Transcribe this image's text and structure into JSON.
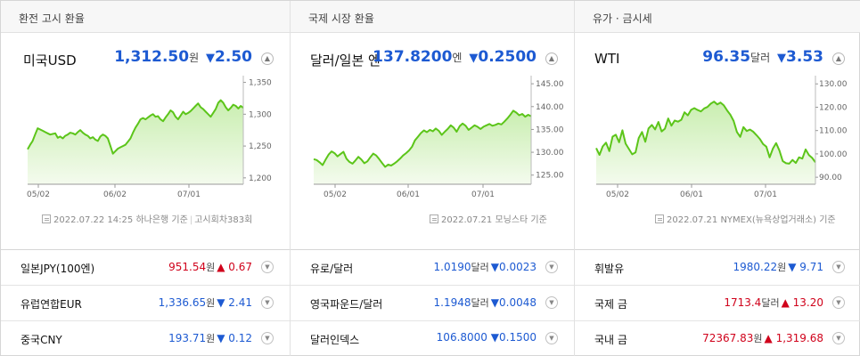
{
  "columns": [
    {
      "header": "환전 고시 환율",
      "main": {
        "name": "미국USD",
        "price": "1,312.50",
        "unit": "원",
        "direction": "down",
        "arrow": "▼",
        "change": "2.50",
        "expand_glyph": "▲"
      },
      "source": {
        "date": "2022.07.22 14:25",
        "provider": "하나은행 기준",
        "extra": "고시회차383회"
      },
      "rows": [
        {
          "name": "일본JPY(100엔)",
          "value": "951.54",
          "unit": "원",
          "direction": "up",
          "arrow": "▲",
          "change": "0.67"
        },
        {
          "name": "유럽연합EUR",
          "value": "1,336.65",
          "unit": "원",
          "direction": "down",
          "arrow": "▼",
          "change": "2.41"
        },
        {
          "name": "중국CNY",
          "value": "193.71",
          "unit": "원",
          "direction": "down",
          "arrow": "▼",
          "change": "0.12"
        }
      ]
    },
    {
      "header": "국제 시장 환율",
      "main": {
        "name": "달러/일본 엔",
        "price": "137.8200",
        "unit": "엔",
        "direction": "down",
        "arrow": "▼",
        "change": "0.2500",
        "expand_glyph": "▲"
      },
      "source": {
        "date": "2022.07.21",
        "provider": "모닝스타 기준",
        "extra": ""
      },
      "rows": [
        {
          "name": "유로/달러",
          "value": "1.0190",
          "unit": "달러",
          "direction": "down",
          "arrow": "▼",
          "change": "0.0023"
        },
        {
          "name": "영국파운드/달러",
          "value": "1.1948",
          "unit": "달러",
          "direction": "down",
          "arrow": "▼",
          "change": "0.0048"
        },
        {
          "name": "달러인덱스",
          "value": "106.8000",
          "unit": "",
          "direction": "down",
          "arrow": "▼",
          "change": "0.1500"
        }
      ]
    },
    {
      "header": "유가 · 금시세",
      "main": {
        "name": "WTI",
        "price": "96.35",
        "unit": "달러",
        "direction": "down",
        "arrow": "▼",
        "change": "3.53",
        "expand_glyph": "▲"
      },
      "source": {
        "date": "2022.07.21",
        "provider": "NYMEX(뉴욕상업거래소) 기준",
        "extra": ""
      },
      "rows": [
        {
          "name": "휘발유",
          "value": "1980.22",
          "unit": "원",
          "direction": "down",
          "arrow": "▼",
          "change": "9.71"
        },
        {
          "name": "국제 금",
          "value": "1713.4",
          "unit": "달러",
          "direction": "up",
          "arrow": "▲",
          "change": "13.20"
        },
        {
          "name": "국내 금",
          "value": "72367.83",
          "unit": "원",
          "direction": "up",
          "arrow": "▲",
          "change": "1,319.68"
        }
      ]
    }
  ],
  "row_expand_glyph": "▼",
  "colors": {
    "down": "#1d5ad2",
    "up": "#d0021b",
    "line": "#5cc51a",
    "fill_top": "#c9eeb0",
    "fill_bottom": "#f4fbee"
  },
  "chart_data": [
    {
      "type": "area",
      "x_ticks": [
        "05/02",
        "06/02",
        "07/01"
      ],
      "y_ticks": [
        "1,350",
        "1,300",
        "1,250",
        "1,200"
      ],
      "y_tick_values": [
        1350,
        1300,
        1250,
        1200
      ],
      "ylim": [
        1190,
        1355
      ],
      "series": [
        {
          "values": [
            1245,
            1252,
            1258,
            1268,
            1278,
            1276,
            1274,
            1272,
            1270,
            1268,
            1269,
            1270,
            1263,
            1265,
            1262,
            1266,
            1268,
            1271,
            1270,
            1268,
            1272,
            1275,
            1271,
            1268,
            1266,
            1262,
            1264,
            1260,
            1258,
            1265,
            1268,
            1266,
            1262,
            1250,
            1238,
            1242,
            1246,
            1248,
            1250,
            1252,
            1257,
            1262,
            1271,
            1279,
            1285,
            1292,
            1294,
            1292,
            1295,
            1298,
            1300,
            1296,
            1297,
            1292,
            1289,
            1295,
            1300,
            1306,
            1303,
            1296,
            1292,
            1298,
            1304,
            1300,
            1302,
            1305,
            1309,
            1313,
            1317,
            1311,
            1308,
            1304,
            1300,
            1296,
            1302,
            1308,
            1318,
            1322,
            1318,
            1311,
            1306,
            1310,
            1315,
            1313,
            1309,
            1313,
            1310
          ]
        }
      ]
    },
    {
      "type": "area",
      "x_ticks": [
        "05/02",
        "06/01",
        "07/01"
      ],
      "y_ticks": [
        "145.00",
        "140.00",
        "135.00",
        "130.00",
        "125.00"
      ],
      "y_tick_values": [
        145,
        140,
        135,
        130,
        125
      ],
      "ylim": [
        123,
        146
      ],
      "series": [
        {
          "values": [
            128.5,
            128.3,
            127.8,
            127.2,
            128.4,
            129.5,
            130.2,
            129.8,
            129.1,
            129.6,
            130.1,
            128.6,
            127.9,
            127.5,
            128.2,
            129.0,
            128.4,
            127.6,
            128.0,
            128.9,
            129.7,
            129.3,
            128.5,
            127.6,
            126.8,
            127.3,
            127.1,
            127.5,
            128.0,
            128.6,
            129.3,
            129.8,
            130.4,
            131.2,
            132.6,
            133.4,
            134.2,
            134.8,
            134.4,
            134.9,
            134.6,
            135.2,
            134.7,
            133.8,
            134.5,
            135.1,
            135.9,
            135.4,
            134.5,
            135.7,
            136.3,
            135.8,
            134.9,
            135.4,
            135.9,
            135.6,
            135.1,
            135.6,
            135.9,
            136.2,
            135.8,
            136.0,
            136.3,
            136.1,
            136.7,
            137.4,
            138.2,
            139.1,
            138.7,
            138.1,
            138.4,
            137.8,
            138.2,
            137.9
          ]
        }
      ]
    },
    {
      "type": "area",
      "x_ticks": [
        "05/02",
        "06/01",
        "07/01"
      ],
      "y_ticks": [
        "130.00",
        "120.00",
        "110.00",
        "100.00",
        "90.00"
      ],
      "y_tick_values": [
        130,
        120,
        110,
        100,
        90
      ],
      "ylim": [
        87,
        132
      ],
      "series": [
        {
          "values": [
            102.5,
            99.6,
            103.2,
            104.8,
            101.2,
            107.4,
            108.2,
            105.0,
            110.1,
            104.4,
            102.1,
            99.8,
            100.6,
            106.8,
            109.4,
            105.2,
            110.9,
            112.4,
            110.5,
            113.7,
            109.6,
            110.8,
            115.2,
            112.1,
            114.3,
            113.8,
            114.6,
            117.8,
            116.5,
            118.9,
            119.6,
            118.8,
            118.2,
            119.5,
            120.1,
            121.5,
            122.4,
            121.2,
            122.0,
            120.8,
            118.6,
            116.8,
            114.1,
            109.4,
            107.3,
            111.5,
            109.8,
            110.4,
            109.5,
            108.0,
            106.4,
            104.2,
            103.1,
            98.5,
            102.3,
            104.6,
            101.4,
            96.9,
            96.0,
            95.8,
            97.4,
            96.1,
            98.5,
            98.0,
            101.9,
            99.5,
            98.3,
            96.4
          ]
        }
      ]
    }
  ]
}
